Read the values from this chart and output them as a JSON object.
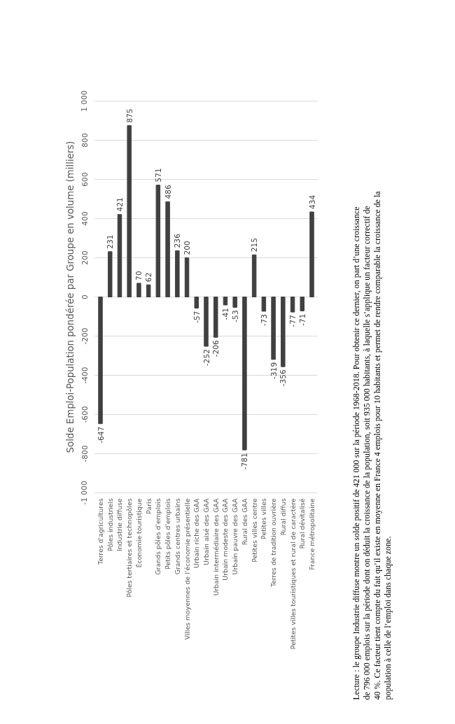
{
  "chart_data": {
    "type": "bar",
    "title": "Solde Emploi-Population pondérée par Groupe en volume (milliers)",
    "categories": [
      "Terres d'agricultures",
      "Pôles industriels",
      "Industrie diffuse",
      "Pôles tertiaires et technopôles",
      "Économie touristique",
      "Paris",
      "Grands pôles d'emplois",
      "Petits pôles d'emplois",
      "Grands centres urbains",
      "Villes moyennes de l'économie présentielle",
      "Urbain riche des GAA",
      "Urbain aisé des GAA",
      "Urbain intermédiaire des GAA",
      "Urbain modeste des GAA",
      "Urbain pauvre des GAA",
      "Rural des GAA",
      "Petites villes centre",
      "Petites villes",
      "Terres de tradition ouvrière",
      "Rural diffus",
      "Petites villes touristiques et rural de caractère",
      "Rural dévitalisé",
      "France métropolitaine"
    ],
    "values": [
      -647,
      231,
      421,
      875,
      70,
      62,
      571,
      486,
      236,
      200,
      -57,
      -252,
      -206,
      -41,
      -53,
      -781,
      215,
      -73,
      -319,
      -356,
      -77,
      -71,
      434
    ],
    "color": "#404040",
    "data_labels": true,
    "ylim": [
      -1000,
      1000
    ],
    "yticks": [
      {
        "value": -1000,
        "label": "-1 000"
      },
      -800,
      -600,
      -400,
      -200,
      0,
      200,
      400,
      600,
      800,
      {
        "value": 1000,
        "label": "1 000"
      }
    ],
    "grid": "y",
    "annotations": [
      "Lecture : le groupe Industrie diffuse montre un solde positif de 421 000 sur la période 1968-2018. Pour obtenir ce dernier, on part d’une croissance de 796 000 emplois sur la période dont on déduit la croissance de la population, soit 935 000 habitants, à laquelle s’applique un facteur correctif de 40 %. Ce facteur tient compte du fait qu’il existe en moyenne en France 4 emplois pour 10 habitants et permet de rendre comparable la croissance de la population à celle de l’emploi dans chaque zone."
    ]
  }
}
